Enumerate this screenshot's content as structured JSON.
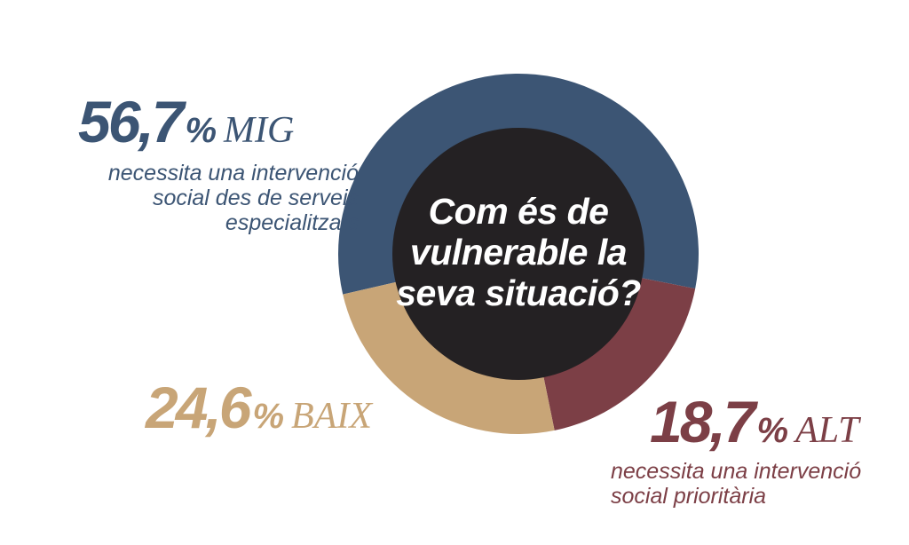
{
  "center_text": "Com és de vulnerable la seva situació?",
  "colors": {
    "mig": "#3c5574",
    "alt": "#7c3f46",
    "baix": "#c8a577",
    "center": "#242123"
  },
  "labels": {
    "mig": {
      "value": "56,7",
      "pct": "%",
      "category": "MIG",
      "description": "necessita una intervenció social des de serveis especialitzats"
    },
    "alt": {
      "value": "18,7",
      "pct": "%",
      "category": "ALT",
      "description": "necessita una intervenció social prioritària"
    },
    "baix": {
      "value": "24,6",
      "pct": "%",
      "category": "BAIX"
    }
  },
  "chart_data": {
    "type": "pie",
    "variant": "donut",
    "title": "Com és de vulnerable la seva situació?",
    "categories": [
      "MIG",
      "ALT",
      "BAIX"
    ],
    "values": [
      56.7,
      18.7,
      24.6
    ],
    "unit": "%"
  }
}
